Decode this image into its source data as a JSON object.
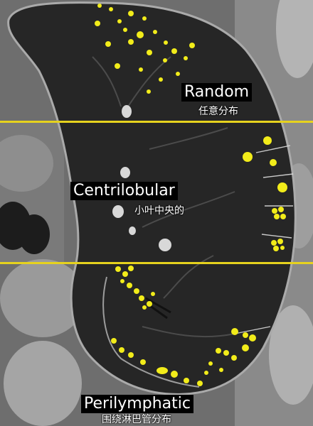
{
  "sections": [
    {
      "id": "random",
      "label_en": "Random",
      "label_zh": "任意分布"
    },
    {
      "id": "centrilobular",
      "label_en": "Centrilobular",
      "label_zh": "小叶中央的"
    },
    {
      "id": "perilymphatic",
      "label_en": "Perilymphatic",
      "label_zh": "围绕淋巴管分布"
    }
  ],
  "colors": {
    "nodule": "#f2ec1a",
    "divider": "#e6d21e",
    "lung": "#262626",
    "chest_wall": "#8c8c8c",
    "label_bg": "#000000",
    "label_text": "#ffffff"
  }
}
